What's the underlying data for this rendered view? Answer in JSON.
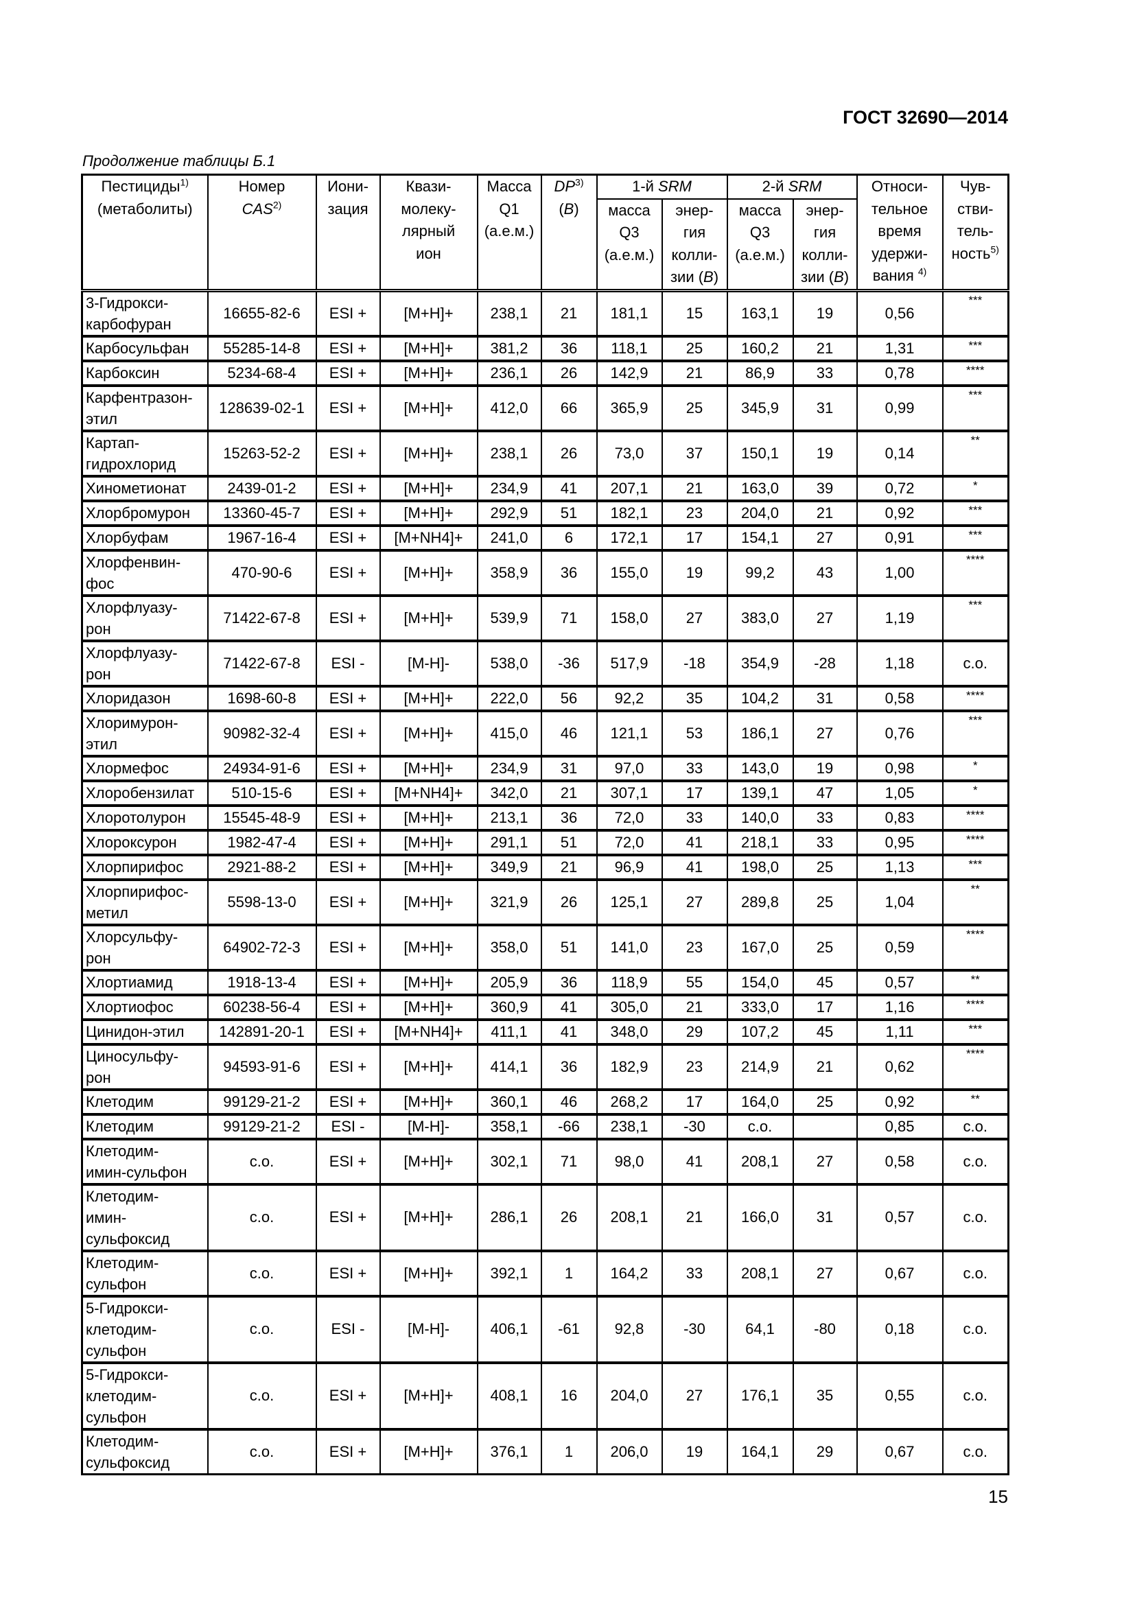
{
  "header_doc": "ГОСТ 32690—2014",
  "caption": "Продолжение таблицы Б.1",
  "page_number": "15",
  "columns": {
    "pesticide": {
      "text": "Пестициды",
      "sup": "1)",
      "text2": "(метаболиты)"
    },
    "cas": {
      "text": "Номер",
      "italic": "CAS",
      "sup": "2)"
    },
    "ionization": {
      "text": "Иони-\nзация"
    },
    "ion": {
      "text": "Квази-\nмолеку-\nлярный\nион"
    },
    "q1": {
      "text": "Масса\nQ1\n(а.е.м.)"
    },
    "dp": {
      "italic": "DP",
      "sup": "3)",
      "text2": "(",
      "italic2": "В",
      "text3": ")"
    },
    "srm1": {
      "text": "1-й ",
      "italic": "SRM"
    },
    "srm2": {
      "text": "2-й ",
      "italic": "SRM"
    },
    "mass_q3": {
      "text": "масса\nQ3\n(а.е.м.)"
    },
    "energy": {
      "text": "энер-\nгия\nколли-\nзии (",
      "italic": "В",
      "text2": ")"
    },
    "rt": {
      "text": "Относи-\nтельное\nвремя\nудержи-\nвания ",
      "sup": "4)"
    },
    "sens": {
      "text": "Чув-\nстви-\nтель-\nность",
      "sup": "5)"
    }
  },
  "rows": [
    [
      "3-Гидрокси-\nкарбофуран",
      "16655-82-6",
      "ESI +",
      "[M+H]+",
      "238,1",
      "21",
      "181,1",
      "15",
      "163,1",
      "19",
      "0,56",
      "***"
    ],
    [
      "Карбосульфан",
      "55285-14-8",
      "ESI +",
      "[M+H]+",
      "381,2",
      "36",
      "118,1",
      "25",
      "160,2",
      "21",
      "1,31",
      "***"
    ],
    [
      "Карбоксин",
      "5234-68-4",
      "ESI +",
      "[M+H]+",
      "236,1",
      "26",
      "142,9",
      "21",
      "86,9",
      "33",
      "0,78",
      "****"
    ],
    [
      "Карфентразон-\nэтил",
      "128639-02-1",
      "ESI +",
      "[M+H]+",
      "412,0",
      "66",
      "365,9",
      "25",
      "345,9",
      "31",
      "0,99",
      "***"
    ],
    [
      "Картап-\nгидрохлорид",
      "15263-52-2",
      "ESI +",
      "[M+H]+",
      "238,1",
      "26",
      "73,0",
      "37",
      "150,1",
      "19",
      "0,14",
      "**"
    ],
    [
      "Хинометионат",
      "2439-01-2",
      "ESI +",
      "[M+H]+",
      "234,9",
      "41",
      "207,1",
      "21",
      "163,0",
      "39",
      "0,72",
      "*"
    ],
    [
      "Хлорбромурон",
      "13360-45-7",
      "ESI +",
      "[M+H]+",
      "292,9",
      "51",
      "182,1",
      "23",
      "204,0",
      "21",
      "0,92",
      "***"
    ],
    [
      "Хлорбуфам",
      "1967-16-4",
      "ESI +",
      "[M+NH4]+",
      "241,0",
      "6",
      "172,1",
      "17",
      "154,1",
      "27",
      "0,91",
      "***"
    ],
    [
      "Хлорфенвин-\nфос",
      "470-90-6",
      "ESI +",
      "[M+H]+",
      "358,9",
      "36",
      "155,0",
      "19",
      "99,2",
      "43",
      "1,00",
      "****"
    ],
    [
      "Хлорфлуазу-\nрон",
      "71422-67-8",
      "ESI +",
      "[M+H]+",
      "539,9",
      "71",
      "158,0",
      "27",
      "383,0",
      "27",
      "1,19",
      "***"
    ],
    [
      "Хлорфлуазу-\nрон",
      "71422-67-8",
      "ESI -",
      "[M-H]-",
      "538,0",
      "-36",
      "517,9",
      "-18",
      "354,9",
      "-28",
      "1,18",
      "с.о."
    ],
    [
      "Хлоридазон",
      "1698-60-8",
      "ESI +",
      "[M+H]+",
      "222,0",
      "56",
      "92,2",
      "35",
      "104,2",
      "31",
      "0,58",
      "****"
    ],
    [
      "Хлоримурон-\nэтил",
      "90982-32-4",
      "ESI +",
      "[M+H]+",
      "415,0",
      "46",
      "121,1",
      "53",
      "186,1",
      "27",
      "0,76",
      "***"
    ],
    [
      "Хлормефос",
      "24934-91-6",
      "ESI +",
      "[M+H]+",
      "234,9",
      "31",
      "97,0",
      "33",
      "143,0",
      "19",
      "0,98",
      "*"
    ],
    [
      "Хлоробензилат",
      "510-15-6",
      "ESI +",
      "[M+NH4]+",
      "342,0",
      "21",
      "307,1",
      "17",
      "139,1",
      "47",
      "1,05",
      "*"
    ],
    [
      "Хлоротолурон",
      "15545-48-9",
      "ESI +",
      "[M+H]+",
      "213,1",
      "36",
      "72,0",
      "33",
      "140,0",
      "33",
      "0,83",
      "****"
    ],
    [
      "Хлороксурон",
      "1982-47-4",
      "ESI +",
      "[M+H]+",
      "291,1",
      "51",
      "72,0",
      "41",
      "218,1",
      "33",
      "0,95",
      "****"
    ],
    [
      "Хлорпирифос",
      "2921-88-2",
      "ESI +",
      "[M+H]+",
      "349,9",
      "21",
      "96,9",
      "41",
      "198,0",
      "25",
      "1,13",
      "***"
    ],
    [
      "Хлорпирифос-\nметил",
      "5598-13-0",
      "ESI +",
      "[M+H]+",
      "321,9",
      "26",
      "125,1",
      "27",
      "289,8",
      "25",
      "1,04",
      "**"
    ],
    [
      "Хлорсульфу-\nрон",
      "64902-72-3",
      "ESI +",
      "[M+H]+",
      "358,0",
      "51",
      "141,0",
      "23",
      "167,0",
      "25",
      "0,59",
      "****"
    ],
    [
      "Хлортиамид",
      "1918-13-4",
      "ESI +",
      "[M+H]+",
      "205,9",
      "36",
      "118,9",
      "55",
      "154,0",
      "45",
      "0,57",
      "**"
    ],
    [
      "Хлортиофос",
      "60238-56-4",
      "ESI +",
      "[M+H]+",
      "360,9",
      "41",
      "305,0",
      "21",
      "333,0",
      "17",
      "1,16",
      "****"
    ],
    [
      "Цинидон-этил",
      "142891-20-1",
      "ESI +",
      "[M+NH4]+",
      "411,1",
      "41",
      "348,0",
      "29",
      "107,2",
      "45",
      "1,11",
      "***"
    ],
    [
      "Циносульфу-\nрон",
      "94593-91-6",
      "ESI +",
      "[M+H]+",
      "414,1",
      "36",
      "182,9",
      "23",
      "214,9",
      "21",
      "0,62",
      "****"
    ],
    [
      "Клетодим",
      "99129-21-2",
      "ESI +",
      "[M+H]+",
      "360,1",
      "46",
      "268,2",
      "17",
      "164,0",
      "25",
      "0,92",
      "**"
    ],
    [
      "Клетодим",
      "99129-21-2",
      "ESI -",
      "[M-H]-",
      "358,1",
      "-66",
      "238,1",
      "-30",
      "с.о.",
      "",
      "0,85",
      "с.о."
    ],
    [
      "Клетодим-\nимин-сульфон",
      "с.о.",
      "ESI +",
      "[M+H]+",
      "302,1",
      "71",
      "98,0",
      "41",
      "208,1",
      "27",
      "0,58",
      "с.о."
    ],
    [
      "Клетодим-\nимин-\nсульфоксид",
      "с.о.",
      "ESI +",
      "[M+H]+",
      "286,1",
      "26",
      "208,1",
      "21",
      "166,0",
      "31",
      "0,57",
      "с.о."
    ],
    [
      "Клетодим-\nсульфон",
      "с.о.",
      "ESI +",
      "[M+H]+",
      "392,1",
      "1",
      "164,2",
      "33",
      "208,1",
      "27",
      "0,67",
      "с.о."
    ],
    [
      "5-Гидрокси-\nклетодим-\nсульфон",
      "с.о.",
      "ESI -",
      "[M-H]-",
      "406,1",
      "-61",
      "92,8",
      "-30",
      "64,1",
      "-80",
      "0,18",
      "с.о."
    ],
    [
      "5-Гидрокси-\nклетодим-\nсульфон",
      "с.о.",
      "ESI +",
      "[M+H]+",
      "408,1",
      "16",
      "204,0",
      "27",
      "176,1",
      "35",
      "0,55",
      "с.о."
    ],
    [
      "Клетодим-\nсульфоксид",
      "с.о.",
      "ESI +",
      "[M+H]+",
      "376,1",
      "1",
      "206,0",
      "19",
      "164,1",
      "29",
      "0,67",
      "с.о."
    ]
  ]
}
